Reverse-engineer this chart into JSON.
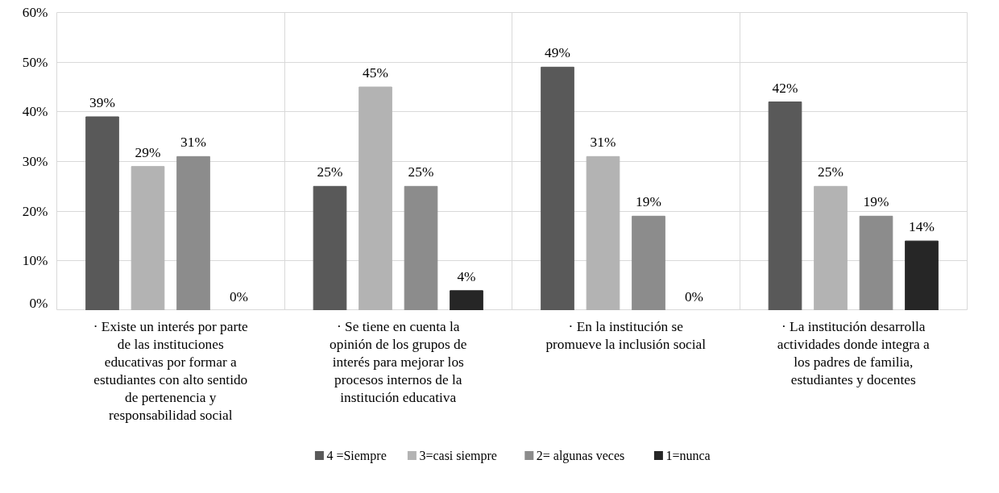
{
  "chart_data": {
    "type": "bar",
    "categories": [
      "· Existe un interés por parte de las instituciones educativas por formar a estudiantes con alto sentido de pertenencia y responsabilidad social",
      "· Se tiene en cuenta la opinión de los grupos de interés para mejorar los procesos internos de la institución educativa",
      "· En la institución se promueve la inclusión social",
      "· La institución desarrolla actividades donde integra a los padres de familia, estudiantes y docentes"
    ],
    "series": [
      {
        "name": "4 =Siempre",
        "color": "#595959",
        "values": [
          39,
          25,
          49,
          42
        ],
        "value_labels": [
          "39%",
          "25%",
          "49%",
          "42%"
        ]
      },
      {
        "name": "3=casi siempre",
        "color": "#b3b3b3",
        "values": [
          29,
          45,
          31,
          25
        ],
        "value_labels": [
          "29%",
          "45%",
          "31%",
          "25%"
        ]
      },
      {
        "name": "2= algunas veces",
        "color": "#8c8c8c",
        "values": [
          31,
          25,
          19,
          19
        ],
        "value_labels": [
          "31%",
          "25%",
          "19%",
          "19%"
        ]
      },
      {
        "name": "1=nunca",
        "color": "#262626",
        "values": [
          0,
          4,
          0,
          14
        ],
        "value_labels": [
          "0%",
          "4%",
          "0%",
          "14%"
        ]
      }
    ],
    "ylim": [
      0,
      60
    ],
    "yticks": [
      {
        "value": 0,
        "label": "0%"
      },
      {
        "value": 10,
        "label": "10%"
      },
      {
        "value": 20,
        "label": "20%"
      },
      {
        "value": 30,
        "label": "30%"
      },
      {
        "value": 40,
        "label": "40%"
      },
      {
        "value": 50,
        "label": "50%"
      },
      {
        "value": 60,
        "label": "60%"
      }
    ],
    "grid": true,
    "legend": "bottom"
  }
}
